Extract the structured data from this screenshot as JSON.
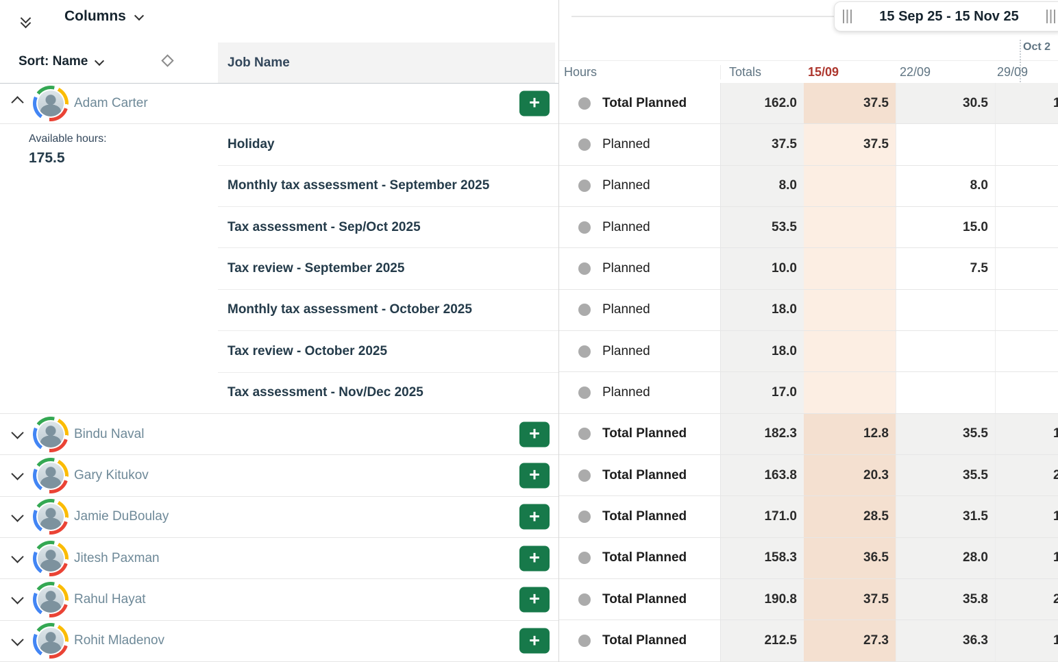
{
  "left_panel": {
    "columns_button": "Columns",
    "sort_button": "Sort: Name",
    "job_name_header": "Job Name",
    "add_button": "+",
    "expanded_person": {
      "name": "Adam Carter",
      "available_hours_label": "Available hours:",
      "available_hours_value": "175.5",
      "jobs": [
        "Holiday",
        "Monthly tax assessment - September 2025",
        "Tax assessment - Sep/Oct 2025",
        "Tax review - September 2025",
        "Monthly tax assessment - October 2025",
        "Tax review - October 2025",
        "Tax assessment - Nov/Dec 2025"
      ]
    },
    "people": [
      "Bindu Naval",
      "Gary Kitukov",
      "Jamie DuBoulay",
      "Jitesh Paxman",
      "Rahul Hayat",
      "Rohit Mladenov"
    ]
  },
  "timeline": {
    "range_label": "15 Sep 25 - 15 Nov 25",
    "month_label_partial": "Oct 2",
    "headers": {
      "hours": "Hours",
      "totals": "Totals",
      "weeks": [
        "15/09",
        "22/09",
        "29/09"
      ]
    },
    "highlighted_week": "15/09"
  },
  "grid": {
    "rows": [
      {
        "label": "Total Planned",
        "type": "total",
        "totals": "162.0",
        "week1": "37.5",
        "week2": "30.5",
        "week3_partial": "1"
      },
      {
        "label": "Planned",
        "type": "planned",
        "totals": "37.5",
        "week1": "37.5",
        "week2": "",
        "week3_partial": ""
      },
      {
        "label": "Planned",
        "type": "planned",
        "totals": "8.0",
        "week1": "",
        "week2": "8.0",
        "week3_partial": ""
      },
      {
        "label": "Planned",
        "type": "planned",
        "totals": "53.5",
        "week1": "",
        "week2": "15.0",
        "week3_partial": ""
      },
      {
        "label": "Planned",
        "type": "planned",
        "totals": "10.0",
        "week1": "",
        "week2": "7.5",
        "week3_partial": ""
      },
      {
        "label": "Planned",
        "type": "planned",
        "totals": "18.0",
        "week1": "",
        "week2": "",
        "week3_partial": ""
      },
      {
        "label": "Planned",
        "type": "planned",
        "totals": "18.0",
        "week1": "",
        "week2": "",
        "week3_partial": ""
      },
      {
        "label": "Planned",
        "type": "planned",
        "totals": "17.0",
        "week1": "",
        "week2": "",
        "week3_partial": ""
      },
      {
        "label": "Total Planned",
        "type": "total",
        "totals": "182.3",
        "week1": "12.8",
        "week2": "35.5",
        "week3_partial": "1"
      },
      {
        "label": "Total Planned",
        "type": "total",
        "totals": "163.8",
        "week1": "20.3",
        "week2": "35.5",
        "week3_partial": "2"
      },
      {
        "label": "Total Planned",
        "type": "total",
        "totals": "171.0",
        "week1": "28.5",
        "week2": "31.5",
        "week3_partial": "1"
      },
      {
        "label": "Total Planned",
        "type": "total",
        "totals": "158.3",
        "week1": "36.5",
        "week2": "28.0",
        "week3_partial": "1"
      },
      {
        "label": "Total Planned",
        "type": "total",
        "totals": "190.8",
        "week1": "37.5",
        "week2": "35.8",
        "week3_partial": "2"
      },
      {
        "label": "Total Planned",
        "type": "total",
        "totals": "212.5",
        "week1": "27.3",
        "week2": "36.3",
        "week3_partial": "1"
      }
    ]
  },
  "colors": {
    "accent_green": "#17794A",
    "current_week_red": "#AD372E",
    "highlight_week_total_bg": "#F4E0D0",
    "highlight_week_planned_bg": "#FCEEE3",
    "totals_column_bg": "#F1F1F0"
  }
}
